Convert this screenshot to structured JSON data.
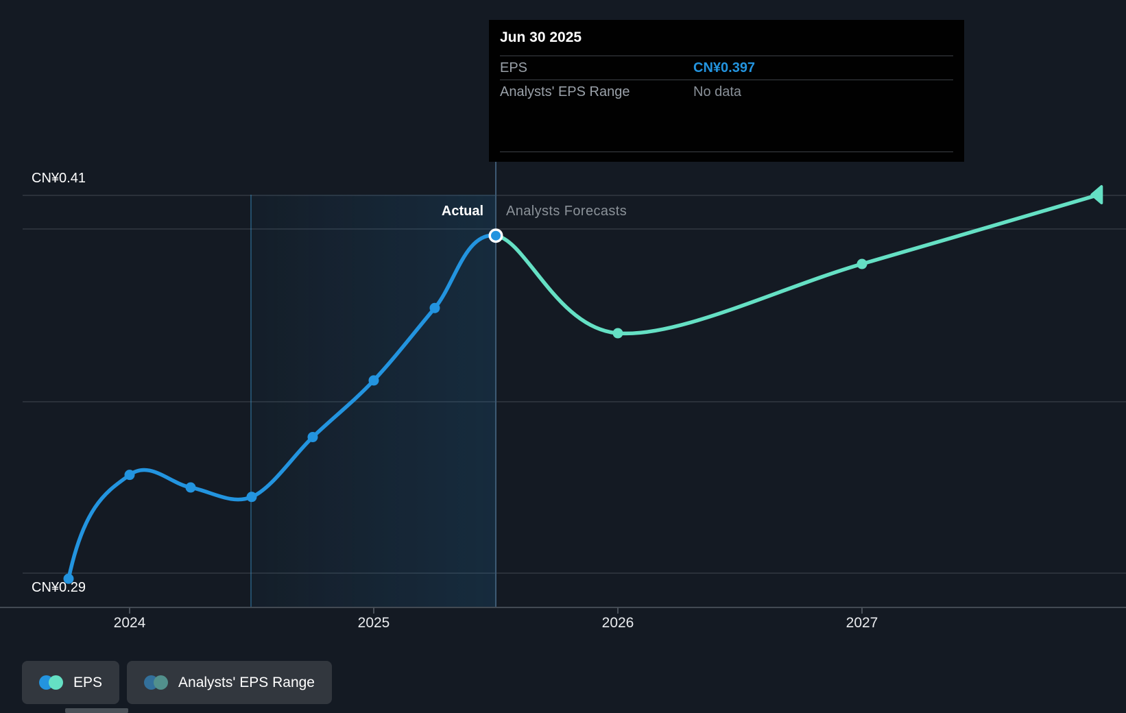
{
  "tooltip": {
    "title": "Jun 30 2025",
    "rows": [
      {
        "label": "EPS",
        "value": "CN¥0.397"
      },
      {
        "label": "Analysts' EPS Range",
        "value": "No data"
      }
    ]
  },
  "labels": {
    "actual": "Actual",
    "forecast": "Analysts Forecasts"
  },
  "axis": {
    "y_top": "CN¥0.41",
    "y_bottom": "CN¥0.29"
  },
  "legend": [
    {
      "label": "EPS",
      "dot_colors": [
        "#2394df",
        "#65e0c4"
      ]
    },
    {
      "label": "Analysts' EPS Range",
      "dot_colors": [
        "#33709b",
        "#52908c"
      ]
    }
  ],
  "colors": {
    "actual_line": "#2394df",
    "forecast_line": "#65e0c4",
    "accent_value": "#2394df",
    "background": "#141a23"
  },
  "chart_data": {
    "type": "line",
    "title": "EPS: Actual vs Analysts Forecasts",
    "currency": "CN¥",
    "ylabel": "EPS",
    "ylim": [
      0.29,
      0.41
    ],
    "y_gridline_values": [
      0.41,
      0.29
    ],
    "x_tick_labels": [
      "2024",
      "2025",
      "2026",
      "2027"
    ],
    "actual_forecast_divider": {
      "label": "Jun 30 2025",
      "t": 2025.5
    },
    "highlight_window": {
      "from_t": 2024.5,
      "to_t": 2025.5
    },
    "legend_position": "bottom-left",
    "grid": true,
    "series": [
      {
        "name": "EPS (actual)",
        "color": "#2394df",
        "points": [
          {
            "t": 2023.75,
            "v": 0.288
          },
          {
            "t": 2024.0,
            "v": 0.321
          },
          {
            "t": 2024.25,
            "v": 0.317
          },
          {
            "t": 2024.5,
            "v": 0.314
          },
          {
            "t": 2024.75,
            "v": 0.333
          },
          {
            "t": 2025.0,
            "v": 0.351
          },
          {
            "t": 2025.25,
            "v": 0.374
          },
          {
            "t": 2025.5,
            "v": 0.397,
            "ring": true
          }
        ]
      },
      {
        "name": "EPS (analysts forecast)",
        "color": "#65e0c4",
        "end_arrow": true,
        "points": [
          {
            "t": 2025.5,
            "v": 0.397,
            "dot": false
          },
          {
            "t": 2026.0,
            "v": 0.366
          },
          {
            "t": 2027.0,
            "v": 0.388
          },
          {
            "t": 2027.97,
            "v": 0.41,
            "dot": false
          }
        ]
      }
    ]
  }
}
